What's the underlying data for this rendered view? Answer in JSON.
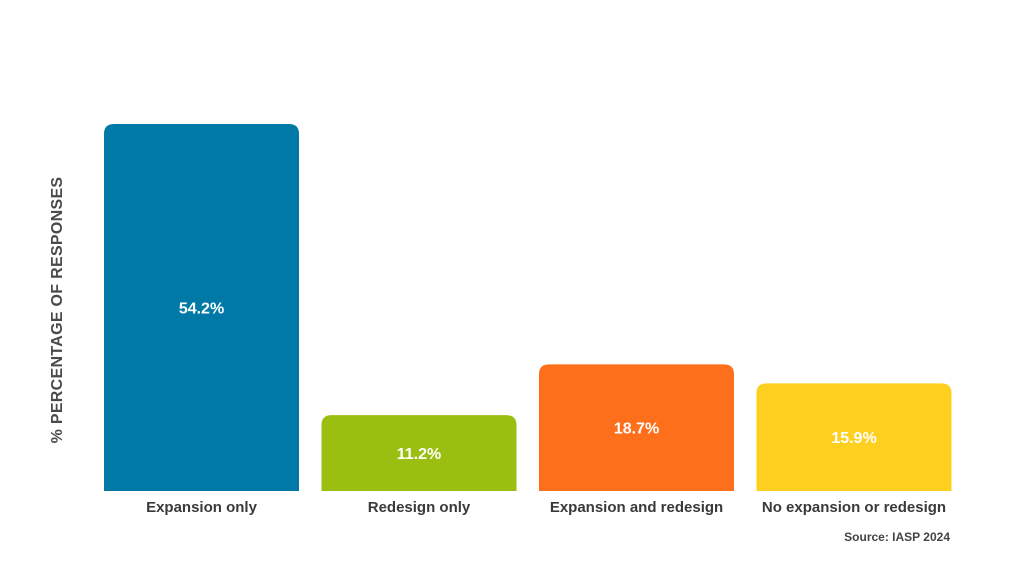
{
  "chart_data": {
    "type": "bar",
    "ylabel": "% PERCENTAGE OF RESPONSES",
    "categories": [
      "Expansion only",
      "Redesign only",
      "Expansion and redesign",
      "No expansion or redesign"
    ],
    "values": [
      54.2,
      11.2,
      18.7,
      15.9
    ],
    "value_labels": [
      "54.2%",
      "11.2%",
      "18.7%",
      "15.9%"
    ],
    "colors": [
      "#0079A6",
      "#9ABF10",
      "#FD6F1A",
      "#FDD01F"
    ],
    "ylim": [
      0,
      54.2
    ],
    "grid": false,
    "legend": "none"
  },
  "source": "Source: IASP 2024"
}
